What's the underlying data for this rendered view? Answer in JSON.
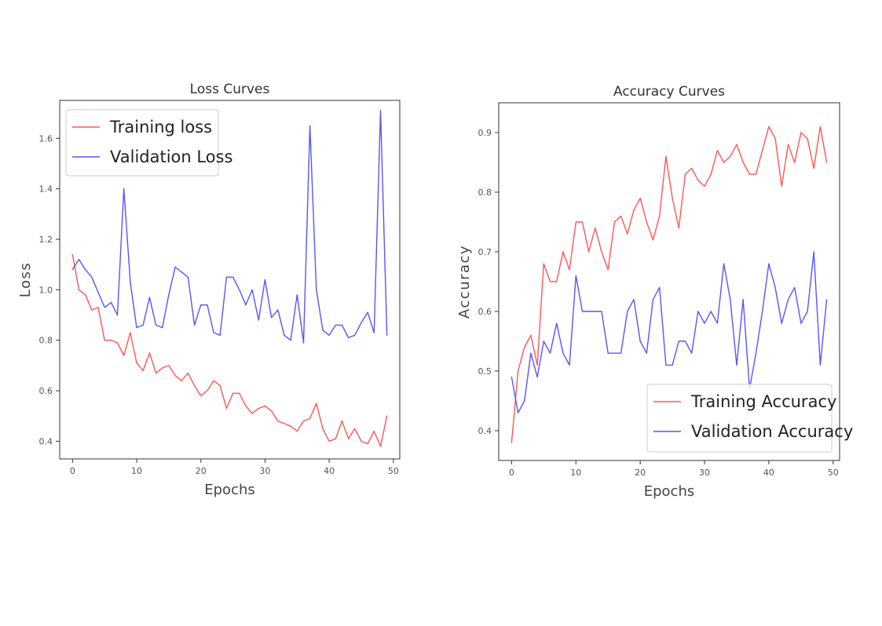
{
  "chart_data": [
    {
      "type": "line",
      "title": "Loss Curves",
      "xlabel": "Epochs",
      "ylabel": "Loss",
      "xlim": [
        -2,
        51
      ],
      "ylim": [
        0.33,
        1.75
      ],
      "xticks": [
        0,
        10,
        20,
        30,
        40,
        50
      ],
      "yticks": [
        0.4,
        0.6,
        0.8,
        1.0,
        1.2,
        1.4,
        1.6
      ],
      "ytick_labels": [
        "0.4",
        "0.6",
        "0.8",
        "1.0",
        "1.2",
        "1.4",
        "1.6"
      ],
      "grid": false,
      "legend_position": "top-left",
      "series": [
        {
          "name": "Training loss",
          "color": "#ff5555",
          "values": [
            1.14,
            1.0,
            0.98,
            0.92,
            0.93,
            0.8,
            0.8,
            0.79,
            0.74,
            0.83,
            0.71,
            0.68,
            0.75,
            0.67,
            0.69,
            0.7,
            0.66,
            0.64,
            0.67,
            0.62,
            0.58,
            0.6,
            0.64,
            0.62,
            0.53,
            0.59,
            0.59,
            0.54,
            0.51,
            0.53,
            0.54,
            0.52,
            0.48,
            0.47,
            0.46,
            0.44,
            0.48,
            0.49,
            0.55,
            0.45,
            0.4,
            0.41,
            0.48,
            0.41,
            0.45,
            0.4,
            0.39,
            0.44,
            0.38,
            0.5
          ]
        },
        {
          "name": "Validation Loss",
          "color": "#5555ff",
          "values": [
            1.08,
            1.12,
            1.08,
            1.05,
            0.99,
            0.93,
            0.95,
            0.9,
            1.4,
            1.03,
            0.85,
            0.86,
            0.97,
            0.86,
            0.85,
            0.98,
            1.09,
            1.07,
            1.05,
            0.86,
            0.94,
            0.94,
            0.83,
            0.82,
            1.05,
            1.05,
            1.0,
            0.94,
            1.0,
            0.88,
            1.04,
            0.89,
            0.92,
            0.82,
            0.8,
            0.98,
            0.79,
            1.65,
            1.0,
            0.84,
            0.82,
            0.86,
            0.86,
            0.81,
            0.82,
            0.87,
            0.91,
            0.83,
            1.71,
            0.82
          ]
        }
      ]
    },
    {
      "type": "line",
      "title": "Accuracy Curves",
      "xlabel": "Epochs",
      "ylabel": "Accuracy",
      "xlim": [
        -2,
        51
      ],
      "ylim": [
        0.35,
        0.95
      ],
      "xticks": [
        0,
        10,
        20,
        30,
        40,
        50
      ],
      "yticks": [
        0.4,
        0.5,
        0.6,
        0.7,
        0.8,
        0.9
      ],
      "ytick_labels": [
        "0.4",
        "0.5",
        "0.6",
        "0.7",
        "0.8",
        "0.9"
      ],
      "grid": false,
      "legend_position": "bottom-right",
      "series": [
        {
          "name": "Training Accuracy",
          "color": "#ff5555",
          "values": [
            0.38,
            0.5,
            0.54,
            0.56,
            0.51,
            0.68,
            0.65,
            0.65,
            0.7,
            0.67,
            0.75,
            0.75,
            0.7,
            0.74,
            0.7,
            0.67,
            0.75,
            0.76,
            0.73,
            0.77,
            0.79,
            0.75,
            0.72,
            0.76,
            0.86,
            0.79,
            0.74,
            0.83,
            0.84,
            0.82,
            0.81,
            0.83,
            0.87,
            0.85,
            0.86,
            0.88,
            0.85,
            0.83,
            0.83,
            0.87,
            0.91,
            0.89,
            0.81,
            0.88,
            0.85,
            0.9,
            0.89,
            0.84,
            0.91,
            0.85
          ]
        },
        {
          "name": "Validation Accuracy",
          "color": "#5555ff",
          "values": [
            0.49,
            0.43,
            0.45,
            0.53,
            0.49,
            0.55,
            0.53,
            0.58,
            0.53,
            0.51,
            0.66,
            0.6,
            0.6,
            0.6,
            0.6,
            0.53,
            0.53,
            0.53,
            0.6,
            0.62,
            0.55,
            0.53,
            0.62,
            0.64,
            0.51,
            0.51,
            0.55,
            0.55,
            0.53,
            0.6,
            0.58,
            0.6,
            0.58,
            0.68,
            0.62,
            0.51,
            0.62,
            0.47,
            0.53,
            0.6,
            0.68,
            0.64,
            0.58,
            0.62,
            0.64,
            0.58,
            0.6,
            0.7,
            0.51,
            0.62
          ]
        }
      ]
    }
  ]
}
